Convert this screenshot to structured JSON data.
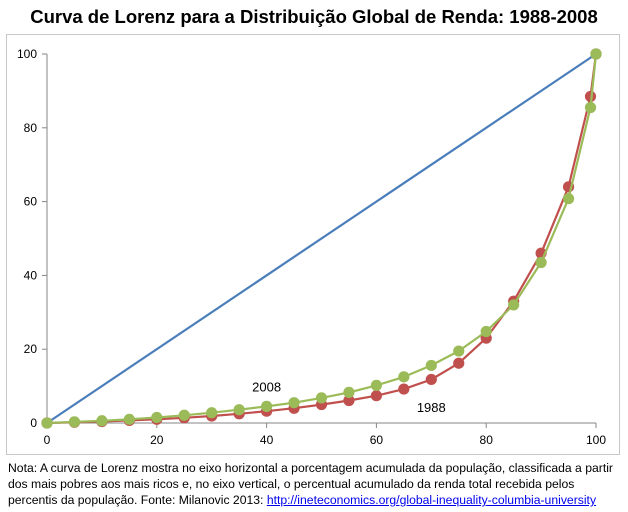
{
  "chart_data": {
    "type": "line",
    "title": "Curva de Lorenz para a Distribuição Global de Renda: 1988-2008",
    "xlabel": "",
    "ylabel": "",
    "xlim": [
      0,
      100
    ],
    "ylim": [
      0,
      100
    ],
    "xticks": [
      "0",
      "20",
      "40",
      "60",
      "80",
      "100"
    ],
    "yticks": [
      "0",
      "20",
      "40",
      "60",
      "80",
      "100"
    ],
    "grid": false,
    "legend": "none",
    "series": [
      {
        "name": "",
        "color": "#4a7ebb",
        "markers": false,
        "x": [
          0,
          100
        ],
        "y": [
          0,
          100
        ]
      },
      {
        "name": "1988",
        "color": "#c0504d",
        "markers": true,
        "x": [
          0,
          5,
          10,
          15,
          20,
          25,
          30,
          35,
          40,
          45,
          50,
          55,
          60,
          65,
          70,
          75,
          80,
          85,
          90,
          95,
          99,
          100
        ],
        "y": [
          0,
          0.2,
          0.4,
          0.7,
          1.0,
          1.4,
          1.9,
          2.5,
          3.2,
          4.0,
          5.0,
          6.1,
          7.4,
          9.2,
          11.8,
          16.2,
          23.0,
          33.0,
          46.0,
          64.0,
          88.5,
          100
        ]
      },
      {
        "name": "2008",
        "color": "#9bbb59",
        "markers": true,
        "x": [
          0,
          5,
          10,
          15,
          20,
          25,
          30,
          35,
          40,
          45,
          50,
          55,
          60,
          65,
          70,
          75,
          80,
          85,
          90,
          95,
          99,
          100
        ],
        "y": [
          0,
          0.3,
          0.6,
          1.0,
          1.5,
          2.1,
          2.8,
          3.6,
          4.5,
          5.5,
          6.8,
          8.3,
          10.2,
          12.5,
          15.6,
          19.5,
          24.8,
          32.0,
          43.5,
          60.8,
          85.5,
          100
        ]
      }
    ],
    "annotations": [
      {
        "text": "2008",
        "x": 40,
        "y": 8.5
      },
      {
        "text": "1988",
        "x": 70,
        "y": 3
      }
    ]
  },
  "note": {
    "text": "Nota: A curva de Lorenz mostra no eixo horizontal a porcentagem acumulada da população, classificada a partir dos mais pobres aos mais ricos e, no eixo vertical, o percentual acumulado da renda total recebida pelos percentis da população. Fonte: Milanovic 2013: ",
    "link": "http://ineteconomics.org/global-inequality-columbia-university"
  }
}
